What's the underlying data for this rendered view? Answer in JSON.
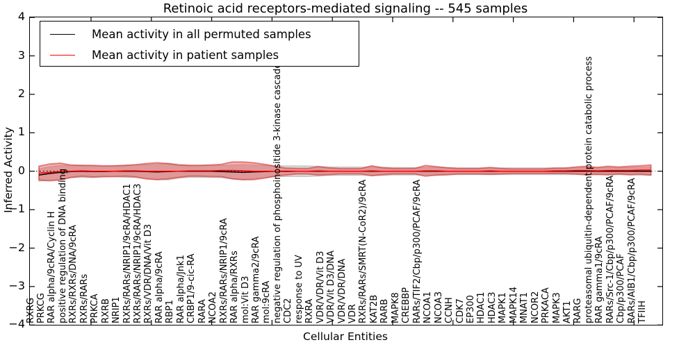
{
  "title": "Retinoic acid receptors-mediated signaling -- 545 samples",
  "legend": {
    "items": [
      {
        "label": "Mean activity in all permuted samples",
        "color": "#000000"
      },
      {
        "label": "Mean activity in patient samples",
        "color": "#ff0000"
      }
    ]
  },
  "axes": {
    "ylabel": "Inferred Activity",
    "xlabel": "Cellular Entities",
    "ytick_labels": [
      "4",
      "3",
      "2",
      "1",
      "0",
      "−1",
      "−2",
      "−3",
      "−4"
    ],
    "ytick_values": [
      4,
      3,
      2,
      1,
      0,
      -1,
      -2,
      -3,
      -4
    ],
    "ylim": [
      -4,
      4
    ]
  },
  "chart_data": {
    "type": "line",
    "title": "Retinoic acid receptors-mediated signaling -- 545 samples",
    "xlabel": "Cellular Entities",
    "ylabel": "Inferred Activity",
    "ylim": [
      -4,
      4
    ],
    "grid": false,
    "legend_position": "upper left",
    "categories": [
      "RXRG",
      "PRKCG",
      "RAR alpha/9cRA/Cyclin H",
      "positive regulation of DNA binding",
      "RXRs/RXRs/DNA/9cRA",
      "RXRs/RARs",
      "PRKCA",
      "RXRB",
      "NRIP1",
      "RXRs/RARs/NRIP1/9cRA/HDAC1",
      "RXRs/RARs/NRIP1/9cRA/HDAC3",
      "RXRs/VDR/DNA/Vit D3",
      "RAR alpha/9cRA",
      "RBP1",
      "RAR alpha/Jnk1",
      "CRBP1/9-cic-RA",
      "RARA",
      "NCOA2",
      "RXRs/RARs/NRIP1/9cRA",
      "RAR alpha/RXRs",
      "mol:Vit D3",
      "RAR gamma2/9cRA",
      "mol:9cRA",
      "negative regulation of phosphoinositide 3-kinase cascade",
      "CDC2",
      "response to UV",
      "RXRA",
      "VDR/VDR/Vit D3",
      "VDR/Vit D3/DNA",
      "VDR/VDR/DNA",
      "VDR",
      "RXRs/RARs/SMRT(N-CoR2)/9cRA",
      "KAT2B",
      "RARB",
      "MAPK8",
      "CREBBP",
      "RARs/TIF2/Cbp/p300/PCAF/9cRA",
      "NCOA1",
      "NCOA3",
      "CCNH",
      "CDK7",
      "EP300",
      "HDAC1",
      "HDAC3",
      "MAPK1",
      "MAPK14",
      "MNAT1",
      "NCOR2",
      "PRKACA",
      "MAPK3",
      "AKT1",
      "RARG",
      "proteasomal ubiquitin-dependent protein catabolic process",
      "RAR gamma1/9cRA",
      "RARs/Src-1/Cbp/p300/PCAF/9cRA",
      "Cbp/p300/PCAF",
      "RARs/AlB1/Cbp/p300/PCAF/9cRA",
      "TFIIH"
    ],
    "series": [
      {
        "name": "Mean activity in all permuted samples",
        "color": "#000000",
        "style": "solid",
        "values": [
          -0.1,
          -0.06,
          -0.03,
          -0.01,
          0,
          -0.01,
          -0.01,
          0,
          0,
          0,
          -0.01,
          -0.02,
          -0.01,
          0,
          0,
          0,
          0,
          -0.01,
          -0.02,
          -0.03,
          -0.02,
          -0.01,
          0,
          0,
          0,
          0,
          0,
          0,
          0,
          0,
          0,
          0,
          0,
          0,
          0,
          0,
          0,
          0,
          0,
          0,
          0,
          0,
          0,
          0,
          0,
          0,
          0,
          0,
          0,
          0,
          0,
          0,
          0,
          0,
          0,
          0,
          0,
          0
        ]
      },
      {
        "name": "Mean activity in patient samples",
        "color": "#ff0000",
        "style": "solid",
        "values": [
          -0.05,
          -0.03,
          -0.01,
          0,
          0.01,
          0,
          0,
          0,
          0.01,
          0.01,
          0,
          0,
          0,
          0,
          0.01,
          0.01,
          0.01,
          0.02,
          0.02,
          0.01,
          0,
          0,
          0,
          -0.01,
          0,
          0,
          0.01,
          0,
          0,
          0,
          0,
          0.01,
          0,
          0,
          0,
          0,
          0.01,
          0.01,
          0,
          0,
          0,
          0,
          0.01,
          0,
          0,
          0,
          0,
          0,
          0.01,
          0.01,
          0.02,
          0.02,
          0.01,
          0.02,
          0.02,
          0.02,
          0.03,
          0.03
        ]
      }
    ],
    "bands": [
      {
        "name": "permuted samples activity range",
        "fill": "rgba(130,130,130,0.32)",
        "edge": "rgba(130,130,130,0.40)",
        "center_series": 0,
        "half_widths": [
          0.16,
          0.18,
          0.18,
          0.16,
          0.16,
          0.16,
          0.14,
          0.14,
          0.16,
          0.16,
          0.18,
          0.2,
          0.22,
          0.18,
          0.16,
          0.16,
          0.16,
          0.16,
          0.18,
          0.2,
          0.18,
          0.16,
          0.14,
          0.14,
          0.14,
          0.14,
          0.13,
          0.11,
          0.11,
          0.11,
          0.11,
          0.11,
          0.11,
          0.1,
          0.1,
          0.1,
          0.1,
          0.11,
          0.1,
          0.09,
          0.09,
          0.09,
          0.09,
          0.09,
          0.09,
          0.09,
          0.09,
          0.09,
          0.09,
          0.09,
          0.09,
          0.1,
          0.09,
          0.1,
          0.09,
          0.1,
          0.1,
          0.11
        ]
      },
      {
        "name": "patient samples activity range",
        "fill": "rgba(235,65,65,0.42)",
        "edge": "rgba(205,35,35,0.50)",
        "center_series": 1,
        "half_widths": [
          0.18,
          0.22,
          0.22,
          0.16,
          0.14,
          0.15,
          0.14,
          0.14,
          0.14,
          0.16,
          0.2,
          0.22,
          0.2,
          0.16,
          0.14,
          0.14,
          0.15,
          0.16,
          0.22,
          0.23,
          0.22,
          0.18,
          0.13,
          0.09,
          0.07,
          0.07,
          0.11,
          0.09,
          0.07,
          0.07,
          0.07,
          0.13,
          0.09,
          0.07,
          0.07,
          0.07,
          0.14,
          0.11,
          0.09,
          0.07,
          0.07,
          0.07,
          0.09,
          0.07,
          0.06,
          0.06,
          0.06,
          0.06,
          0.07,
          0.07,
          0.09,
          0.11,
          0.09,
          0.11,
          0.09,
          0.11,
          0.11,
          0.13
        ]
      }
    ],
    "zero_line": {
      "style": "dotted",
      "color": "#000000",
      "value": 0
    }
  }
}
